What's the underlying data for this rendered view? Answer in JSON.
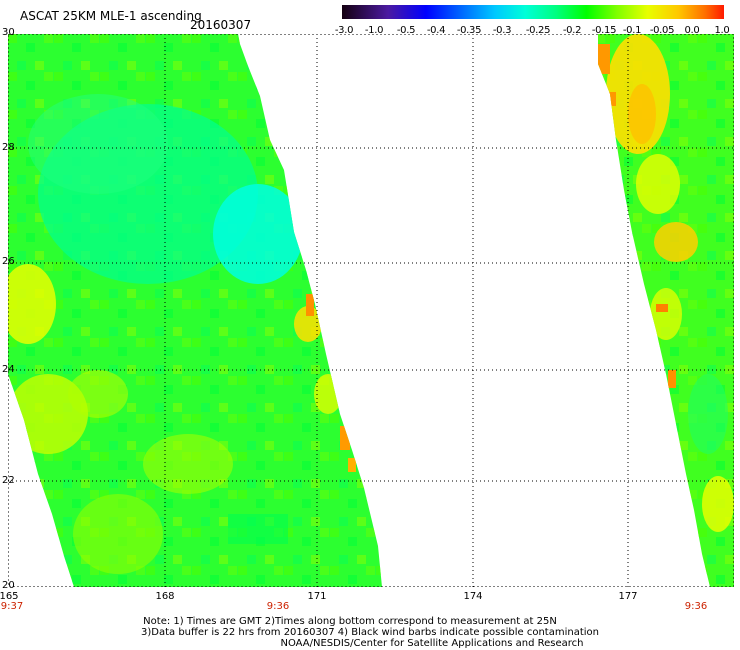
{
  "header": {
    "title": "ASCAT 25KM MLE-1 ascending",
    "date": "20160307"
  },
  "colorbar": {
    "labels": [
      "-3.0",
      "-1.0",
      "-0.5",
      "-0.4",
      "-0.35",
      "-0.3",
      "-0.25",
      "-0.2",
      "-0.15",
      "-0.1",
      "-0.05",
      "0.0",
      "1.0"
    ],
    "colors": [
      "#1a0010",
      "#5a1aa8",
      "#0000ff",
      "#0070ff",
      "#00c8ff",
      "#00ffe0",
      "#00ff80",
      "#00ff00",
      "#80ff00",
      "#e0ff00",
      "#ffd000",
      "#ff8000",
      "#ff2000"
    ]
  },
  "axes": {
    "x_ticks": [
      "165",
      "168",
      "171",
      "174",
      "177"
    ],
    "y_ticks": [
      "30",
      "28",
      "26",
      "24",
      "22",
      "20"
    ]
  },
  "pass_times": [
    "9:37",
    "9:36",
    "9:36"
  ],
  "notes": {
    "line1": "Note: 1) Times are GMT 2)Times along bottom correspond to measurement at 25N",
    "line2": "3)Data buffer is 22 hrs from 20160307 4) Black wind barbs indicate possible contamination",
    "line3": "NOAA/NESDIS/Center for Satellite Applications and Research"
  }
}
